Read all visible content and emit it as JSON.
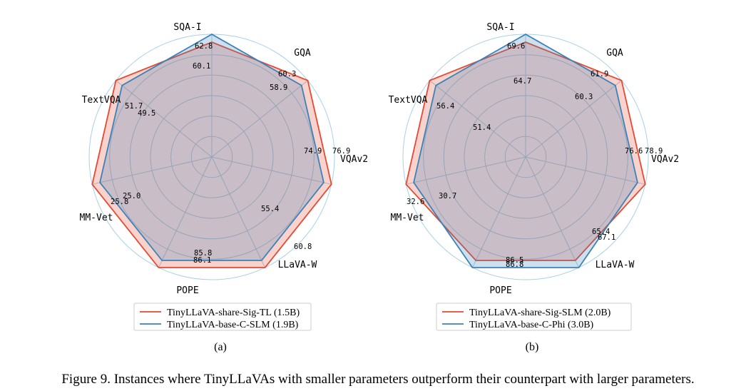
{
  "chart_data": [
    {
      "type": "radar",
      "label": "(a)",
      "axes": [
        "SQA-I",
        "GQA",
        "VQAv2",
        "LLaVA-W",
        "POPE",
        "MM-Vet",
        "TextVQA"
      ],
      "series": [
        {
          "name": "TinyLLaVA-share-Sig-TL (1.5B)",
          "color": "#e34a33",
          "values": [
            60.1,
            60.3,
            76.9,
            60.8,
            86.1,
            25.8,
            51.7
          ],
          "labels": [
            "60.1",
            "60.3",
            "76.9",
            "60.8",
            "86.1",
            "25.8",
            "51.7"
          ]
        },
        {
          "name": "TinyLLaVA-base-C-SLM (1.9B)",
          "color": "#3b82b8",
          "values": [
            62.8,
            58.9,
            74.9,
            55.4,
            85.8,
            25.0,
            49.5
          ],
          "labels": [
            "62.8",
            "58.9",
            "74.9",
            "55.4",
            "85.8",
            "25.0",
            "49.5"
          ]
        }
      ]
    },
    {
      "type": "radar",
      "label": "(b)",
      "axes": [
        "SQA-I",
        "GQA",
        "VQAv2",
        "LLaVA-W",
        "POPE",
        "MM-Vet",
        "TextVQA"
      ],
      "series": [
        {
          "name": "TinyLLaVA-share-Sig-SLM (2.0B)",
          "color": "#e34a33",
          "values": [
            64.7,
            61.9,
            78.9,
            65.4,
            86.5,
            32.6,
            56.4
          ],
          "labels": [
            "64.7",
            "61.9",
            "78.9",
            "65.4",
            "86.5",
            "32.6",
            "56.4"
          ]
        },
        {
          "name": "TinyLLaVA-base-C-Phi (3.0B)",
          "color": "#3b82b8",
          "values": [
            69.6,
            60.3,
            76.6,
            67.1,
            86.8,
            30.7,
            51.4
          ],
          "labels": [
            "69.6",
            "60.3",
            "76.6",
            "67.1",
            "86.8",
            "30.7",
            "51.4"
          ]
        }
      ]
    }
  ],
  "caption": "Figure 9. Instances where TinyLLaVAs with smaller parameters outperform their counterpart with larger parameters."
}
